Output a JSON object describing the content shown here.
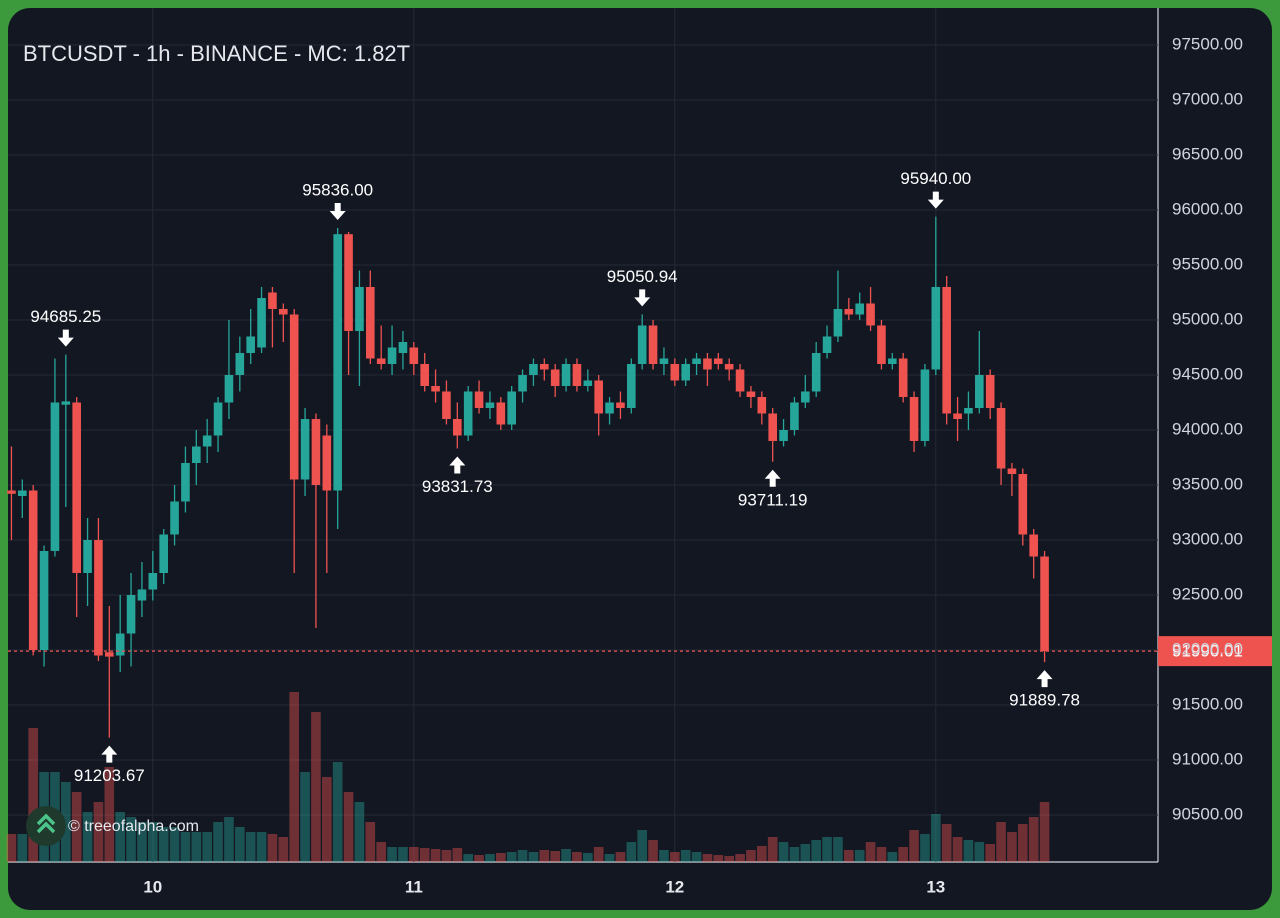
{
  "chart_data": {
    "type": "candlestick",
    "title": "BTCUSDT - 1h - BINANCE - MC: 1.82T",
    "watermark": "© treeofalpha.com",
    "categories": [
      null,
      null,
      null,
      null,
      null,
      null,
      null,
      null,
      null,
      null,
      null,
      null,
      null,
      "10",
      null,
      null,
      null,
      null,
      null,
      null,
      null,
      null,
      null,
      null,
      null,
      null,
      null,
      null,
      null,
      null,
      null,
      null,
      null,
      null,
      null,
      null,
      null,
      "11",
      null,
      null,
      null,
      null,
      null,
      null,
      null,
      null,
      null,
      null,
      null,
      null,
      null,
      null,
      null,
      null,
      null,
      null,
      null,
      null,
      null,
      null,
      null,
      "12",
      null,
      null,
      null,
      null,
      null,
      null,
      null,
      null,
      null,
      null,
      null,
      null,
      null,
      null,
      null,
      null,
      null,
      null,
      null,
      null,
      null,
      null,
      null,
      "13",
      null,
      null,
      null,
      null,
      null,
      null,
      null,
      null,
      null,
      null
    ],
    "open": [
      93450,
      93400,
      93450,
      92000,
      92900,
      94230,
      94250,
      92700,
      93000,
      91980,
      91950,
      92150,
      92450,
      92550,
      92700,
      93050,
      93350,
      93700,
      93850,
      93950,
      94250,
      94500,
      94700,
      94750,
      95250,
      95100,
      95050,
      93550,
      94100,
      93950,
      93450,
      95780,
      94900,
      95300,
      94650,
      94600,
      94700,
      94750,
      94600,
      94400,
      94350,
      94100,
      93950,
      94350,
      94200,
      94250,
      94050,
      94350,
      94500,
      94600,
      94550,
      94400,
      94600,
      94400,
      94450,
      94150,
      94250,
      94200,
      94600,
      94950,
      94600,
      94600,
      94450,
      94600,
      94650,
      94650,
      94600,
      94550,
      94350,
      94300,
      94150,
      93900,
      94000,
      94250,
      94350,
      94700,
      94850,
      95100,
      95050,
      95150,
      94950,
      94600,
      94650,
      94300,
      93900,
      94550,
      95300,
      94150,
      94150,
      94200,
      94500,
      94200,
      93650,
      93600,
      93050,
      92850
    ],
    "high": [
      93850,
      93550,
      93500,
      92950,
      94650,
      94685.25,
      94300,
      93200,
      93200,
      92400,
      92500,
      92700,
      92800,
      92900,
      93100,
      93500,
      93850,
      94000,
      94100,
      94300,
      95000,
      94850,
      95100,
      95300,
      95300,
      95150,
      95100,
      94200,
      94150,
      94050,
      95836,
      95800,
      95450,
      95450,
      94950,
      94950,
      94900,
      94800,
      94700,
      94550,
      94450,
      94250,
      94400,
      94450,
      94350,
      94300,
      94400,
      94550,
      94650,
      94650,
      94600,
      94650,
      94650,
      94550,
      94500,
      94300,
      94350,
      94650,
      95050.94,
      95000,
      94750,
      94650,
      94650,
      94700,
      94700,
      94700,
      94650,
      94600,
      94400,
      94350,
      94200,
      94100,
      94300,
      94500,
      94800,
      94950,
      95450,
      95200,
      95250,
      95300,
      95000,
      94700,
      94700,
      94350,
      94600,
      95940,
      95400,
      94300,
      94350,
      94900,
      94550,
      94250,
      93700,
      93650,
      93100,
      92900
    ],
    "low": [
      93000,
      93200,
      91950,
      91850,
      92850,
      93300,
      92300,
      92400,
      91900,
      91203.67,
      91800,
      91850,
      92300,
      92450,
      92600,
      92950,
      93250,
      93500,
      93700,
      93800,
      94100,
      94350,
      94600,
      94700,
      94750,
      94800,
      92700,
      93400,
      92200,
      92700,
      93100,
      94500,
      94400,
      94600,
      94550,
      94500,
      94550,
      94500,
      94350,
      94250,
      94050,
      93831.73,
      93900,
      94150,
      94100,
      94000,
      94000,
      94250,
      94400,
      94450,
      94300,
      94350,
      94350,
      94350,
      93950,
      94050,
      94100,
      94150,
      94550,
      94550,
      94500,
      94400,
      94400,
      94500,
      94400,
      94550,
      94450,
      94300,
      94200,
      94050,
      93711.19,
      93850,
      93950,
      94200,
      94300,
      94650,
      94800,
      95000,
      95000,
      94900,
      94550,
      94550,
      94250,
      93800,
      93850,
      94500,
      94050,
      93900,
      94000,
      94150,
      94100,
      93500,
      93400,
      92950,
      92650,
      91889.78
    ],
    "close": [
      93420,
      93450,
      92000,
      92900,
      94250,
      94260,
      92700,
      93000,
      91950,
      91940,
      92150,
      92500,
      92550,
      92700,
      93050,
      93350,
      93700,
      93850,
      93950,
      94250,
      94500,
      94700,
      94850,
      95200,
      95100,
      95050,
      93550,
      94100,
      93500,
      93450,
      95780,
      94900,
      95300,
      94650,
      94600,
      94750,
      94800,
      94600,
      94400,
      94350,
      94100,
      93950,
      94350,
      94200,
      94250,
      94050,
      94350,
      94500,
      94600,
      94550,
      94400,
      94600,
      94400,
      94450,
      94150,
      94250,
      94200,
      94600,
      94950,
      94600,
      94650,
      94450,
      94600,
      94650,
      94550,
      94600,
      94550,
      94350,
      94300,
      94150,
      93900,
      94000,
      94250,
      94350,
      94700,
      94850,
      95100,
      95050,
      95150,
      94950,
      94600,
      94650,
      94300,
      93900,
      94550,
      95300,
      94150,
      94100,
      94200,
      94500,
      94200,
      93650,
      93600,
      93050,
      92850,
      91990.01
    ],
    "volume": [
      28,
      28,
      134,
      90,
      90,
      80,
      70,
      50,
      60,
      95,
      50,
      45,
      40,
      40,
      35,
      35,
      30,
      30,
      30,
      40,
      45,
      35,
      30,
      30,
      28,
      25,
      170,
      90,
      150,
      85,
      100,
      70,
      60,
      40,
      20,
      15,
      15,
      15,
      14,
      13,
      12,
      14,
      8,
      7,
      8,
      9,
      10,
      12,
      10,
      12,
      11,
      13,
      10,
      9,
      15,
      8,
      10,
      20,
      32,
      22,
      12,
      10,
      12,
      10,
      8,
      7,
      6,
      8,
      12,
      16,
      25,
      20,
      15,
      18,
      22,
      25,
      25,
      12,
      12,
      20,
      15,
      10,
      15,
      32,
      28,
      48,
      38,
      25,
      22,
      20,
      18,
      40,
      30,
      38,
      45,
      60
    ],
    "up_color": "#26a69a",
    "down_color": "#ef5350",
    "ylim": [
      90073,
      97836
    ],
    "yticks": [
      {
        "value": 90500,
        "label": "90500.00"
      },
      {
        "value": 91000,
        "label": "91000.00"
      },
      {
        "value": 91500,
        "label": "91500.00"
      },
      {
        "value": 92000,
        "label": "92000.00"
      },
      {
        "value": 92500,
        "label": "92500.00"
      },
      {
        "value": 93000,
        "label": "93000.00"
      },
      {
        "value": 93500,
        "label": "93500.00"
      },
      {
        "value": 94000,
        "label": "94000.00"
      },
      {
        "value": 94500,
        "label": "94500.00"
      },
      {
        "value": 95000,
        "label": "95000.00"
      },
      {
        "value": 95500,
        "label": "95500.00"
      },
      {
        "value": 96000,
        "label": "96000.00"
      },
      {
        "value": 96500,
        "label": "96500.00"
      },
      {
        "value": 97000,
        "label": "97000.00"
      },
      {
        "value": 97500,
        "label": "97500.00"
      }
    ],
    "grid": true,
    "annotations": [
      {
        "label": "94685.25",
        "value": 94685.25,
        "at": 5,
        "side": "high"
      },
      {
        "label": "91203.67",
        "value": 91203.67,
        "at": 9,
        "side": "low"
      },
      {
        "label": "95836.00",
        "value": 95836,
        "at": 30,
        "side": "high"
      },
      {
        "label": "93831.73",
        "value": 93831.73,
        "at": 41,
        "side": "low"
      },
      {
        "label": "95050.94",
        "value": 95050.94,
        "at": 58,
        "side": "high"
      },
      {
        "label": "93711.19",
        "value": 93711.19,
        "at": 70,
        "side": "low"
      },
      {
        "label": "95940.00",
        "value": 95940,
        "at": 85,
        "side": "high"
      },
      {
        "label": "91889.78",
        "value": 91889.78,
        "at": 95,
        "side": "low"
      }
    ],
    "last_price": {
      "label": "91990.01",
      "value": 91990.01
    }
  }
}
